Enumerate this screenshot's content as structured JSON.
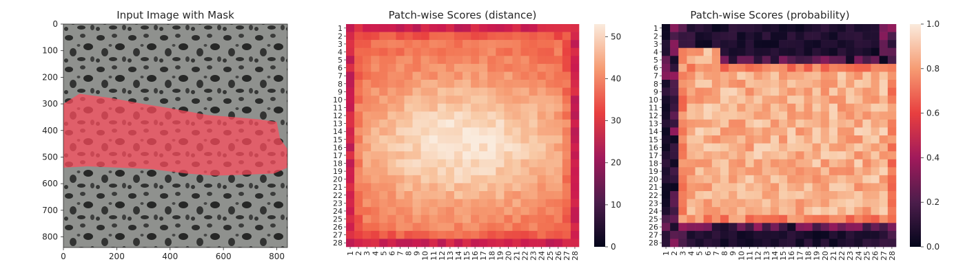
{
  "chart_data": [
    {
      "type": "image",
      "title": "Input Image with Mask",
      "xlim": [
        0,
        840
      ],
      "ylim": [
        840,
        0
      ],
      "xticks": [
        0,
        200,
        400,
        600,
        800
      ],
      "yticks": [
        0,
        100,
        200,
        300,
        400,
        500,
        600,
        700,
        800
      ],
      "background_color": "#8f918e",
      "mask_color": "#ff5060",
      "mask_polygon": [
        [
          0,
          300
        ],
        [
          60,
          262
        ],
        [
          180,
          278
        ],
        [
          300,
          300
        ],
        [
          420,
          320
        ],
        [
          540,
          342
        ],
        [
          640,
          350
        ],
        [
          730,
          358
        ],
        [
          800,
          368
        ],
        [
          812,
          430
        ],
        [
          840,
          470
        ],
        [
          840,
          540
        ],
        [
          790,
          562
        ],
        [
          690,
          566
        ],
        [
          570,
          570
        ],
        [
          460,
          562
        ],
        [
          330,
          545
        ],
        [
          210,
          540
        ],
        [
          90,
          535
        ],
        [
          0,
          540
        ]
      ]
    },
    {
      "type": "heatmap",
      "title": "Patch-wise Scores (distance)",
      "rows": 28,
      "cols": 28,
      "row_labels": [
        "1",
        "2",
        "3",
        "4",
        "5",
        "6",
        "7",
        "8",
        "9",
        "10",
        "11",
        "12",
        "13",
        "14",
        "15",
        "16",
        "17",
        "18",
        "19",
        "20",
        "21",
        "22",
        "23",
        "24",
        "25",
        "26",
        "27",
        "28"
      ],
      "col_labels": [
        "1",
        "2",
        "3",
        "4",
        "5",
        "6",
        "7",
        "8",
        "9",
        "10",
        "11",
        "12",
        "13",
        "14",
        "15",
        "16",
        "17",
        "18",
        "19",
        "20",
        "21",
        "22",
        "23",
        "24",
        "25",
        "26",
        "27",
        "28"
      ],
      "zlim": [
        0,
        53
      ],
      "colorbar_ticks": [
        0,
        10,
        20,
        30,
        40,
        50
      ],
      "colormap": "rocket",
      "edge_value": 27,
      "interior_base": 36,
      "peak_value": 52,
      "peak_center": [
        14.5,
        13.5
      ]
    },
    {
      "type": "heatmap",
      "title": "Patch-wise Scores (probability)",
      "rows": 28,
      "cols": 28,
      "row_labels": [
        "1",
        "2",
        "3",
        "4",
        "5",
        "6",
        "7",
        "8",
        "9",
        "10",
        "11",
        "12",
        "13",
        "14",
        "15",
        "16",
        "17",
        "18",
        "19",
        "20",
        "21",
        "22",
        "23",
        "24",
        "25",
        "26",
        "27",
        "28"
      ],
      "col_labels": [
        "1",
        "2",
        "3",
        "4",
        "5",
        "6",
        "7",
        "8",
        "9",
        "10",
        "11",
        "12",
        "13",
        "14",
        "15",
        "16",
        "17",
        "18",
        "19",
        "20",
        "21",
        "22",
        "23",
        "24",
        "25",
        "26",
        "27",
        "28"
      ],
      "zlim": [
        0,
        1
      ],
      "colorbar_ticks": [
        0.0,
        0.2,
        0.4,
        0.6,
        0.8,
        1.0
      ],
      "colorbar_tick_labels": [
        "0.0",
        "0.2",
        "0.4",
        "0.6",
        "0.8",
        "1.0"
      ],
      "colormap": "rocket",
      "high_region_rows": [
        5,
        24
      ],
      "high_region_cols": [
        2,
        27
      ],
      "high_value": 0.85,
      "low_value": 0.02
    }
  ]
}
